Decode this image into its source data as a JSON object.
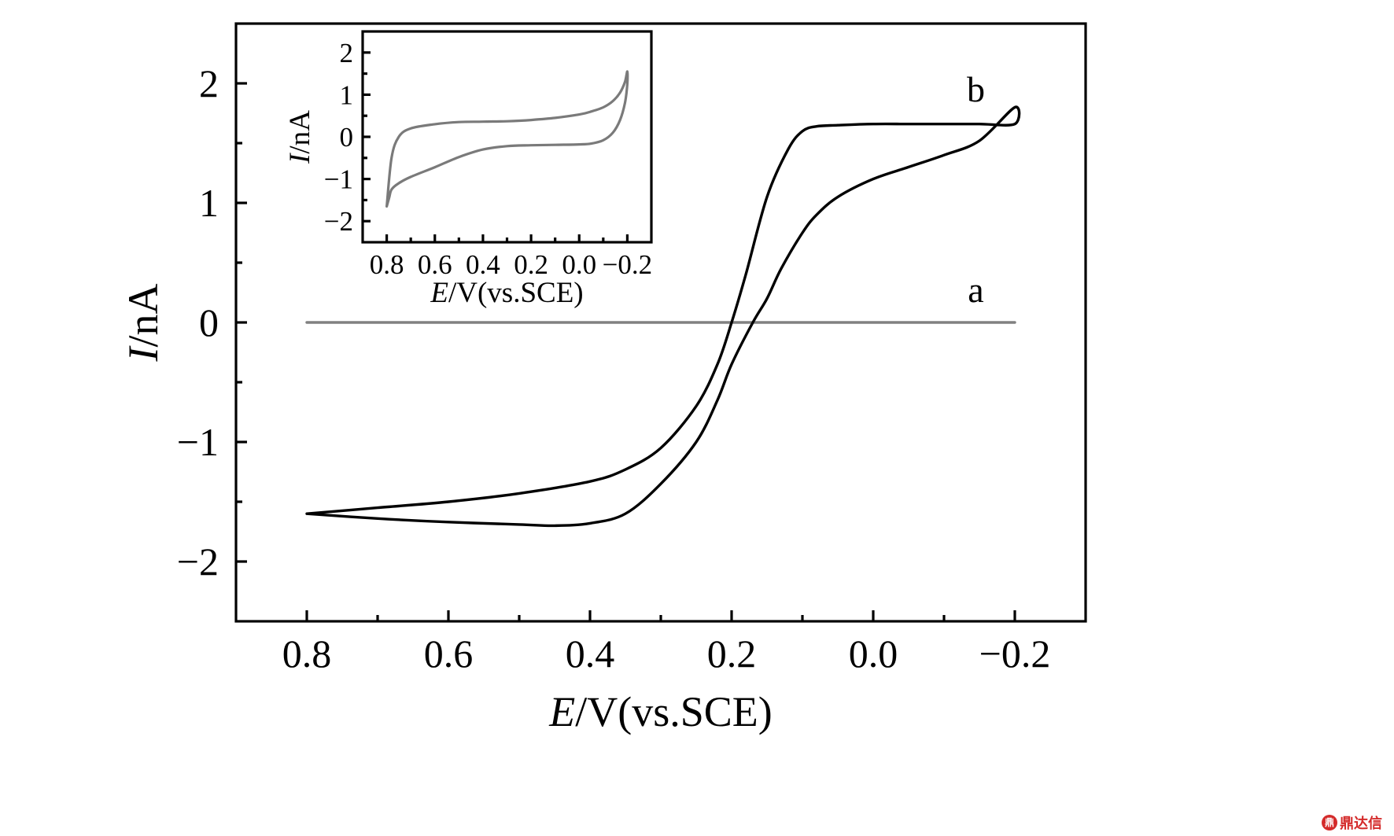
{
  "chart_data": [
    {
      "type": "line",
      "name_role": "main",
      "xlabel_italic": "E",
      "xlabel_rest": "/V(vs.SCE)",
      "ylabel_italic": "I",
      "ylabel_rest": "/nA",
      "xlim": [
        0.9,
        -0.3
      ],
      "ylim": [
        -2.5,
        2.5
      ],
      "x_reversed": true,
      "x_ticks": [
        0.8,
        0.6,
        0.4,
        0.2,
        0.0,
        -0.2
      ],
      "x_tick_labels": [
        "0.8",
        "0.6",
        "0.4",
        "0.2",
        "0.0",
        "−0.2"
      ],
      "x_minor_ticks": [
        0.7,
        0.5,
        0.3,
        0.1,
        -0.1
      ],
      "y_ticks": [
        2,
        1,
        0,
        -1,
        -2
      ],
      "y_tick_labels": [
        "2",
        "1",
        "0",
        "−1",
        "−2"
      ],
      "y_minor_ticks": [
        1.5,
        0.5,
        -0.5,
        -1.5
      ],
      "grid": false,
      "series": [
        {
          "name": "a",
          "color": "#808080",
          "x": [
            0.8,
            -0.2
          ],
          "y": [
            0.0,
            0.0
          ]
        },
        {
          "name": "b",
          "color": "#000000",
          "x": [
            0.8,
            0.7,
            0.6,
            0.5,
            0.4,
            0.35,
            0.3,
            0.25,
            0.22,
            0.2,
            0.18,
            0.15,
            0.12,
            0.1,
            0.08,
            0.05,
            0.0,
            -0.05,
            -0.1,
            -0.15,
            -0.2,
            -0.2,
            -0.15,
            -0.1,
            -0.05,
            0.0,
            0.05,
            0.08,
            0.1,
            0.13,
            0.15,
            0.17,
            0.2,
            0.22,
            0.25,
            0.3,
            0.35,
            0.4,
            0.45,
            0.5,
            0.6,
            0.7,
            0.8
          ],
          "y": [
            -1.6,
            -1.55,
            -1.5,
            -1.43,
            -1.33,
            -1.23,
            -1.05,
            -0.7,
            -0.35,
            0.0,
            0.4,
            1.05,
            1.45,
            1.6,
            1.64,
            1.65,
            1.66,
            1.66,
            1.66,
            1.66,
            1.66,
            1.8,
            1.52,
            1.4,
            1.3,
            1.2,
            1.05,
            0.9,
            0.75,
            0.45,
            0.2,
            0.0,
            -0.35,
            -0.65,
            -1.0,
            -1.35,
            -1.6,
            -1.68,
            -1.7,
            -1.69,
            -1.67,
            -1.64,
            -1.6
          ]
        }
      ],
      "annotations": [
        {
          "text": "a",
          "x": -0.145,
          "y": 0.17
        },
        {
          "text": "b",
          "x": -0.145,
          "y": 1.85
        }
      ]
    },
    {
      "type": "line",
      "name_role": "inset",
      "xlabel_italic": "E",
      "xlabel_rest": "/V(vs.SCE)",
      "ylabel_italic": "I",
      "ylabel_rest": "/nA",
      "xlim": [
        0.9,
        -0.3
      ],
      "ylim": [
        -2.5,
        2.5
      ],
      "x_reversed": true,
      "x_ticks": [
        0.8,
        0.6,
        0.4,
        0.2,
        0.0,
        -0.2
      ],
      "x_tick_labels": [
        "0.8",
        "0.6",
        "0.4",
        "0.2",
        "0.0",
        "−0.2"
      ],
      "x_minor_ticks": [
        0.7,
        0.5,
        0.3,
        0.1,
        -0.1
      ],
      "y_ticks": [
        2,
        1,
        0,
        -1,
        -2
      ],
      "y_tick_labels": [
        "2",
        "1",
        "0",
        "−1",
        "−2"
      ],
      "y_minor_ticks": [
        1.5,
        0.5,
        -0.5,
        -1.5
      ],
      "grid": false,
      "series": [
        {
          "name": "",
          "color": "#7a7a7a",
          "x": [
            0.8,
            0.79,
            0.78,
            0.75,
            0.7,
            0.6,
            0.5,
            0.4,
            0.3,
            0.2,
            0.1,
            0.0,
            -0.05,
            -0.1,
            -0.14,
            -0.17,
            -0.19,
            -0.2,
            -0.2,
            -0.19,
            -0.17,
            -0.14,
            -0.1,
            -0.05,
            0.0,
            0.1,
            0.2,
            0.3,
            0.4,
            0.5,
            0.6,
            0.7,
            0.75,
            0.78,
            0.8
          ],
          "y": [
            -1.65,
            -1.45,
            -1.25,
            -1.1,
            -0.95,
            -0.72,
            -0.48,
            -0.3,
            -0.22,
            -0.2,
            -0.19,
            -0.18,
            -0.16,
            -0.08,
            0.1,
            0.4,
            0.8,
            1.25,
            1.55,
            1.3,
            1.05,
            0.85,
            0.7,
            0.6,
            0.53,
            0.45,
            0.4,
            0.37,
            0.36,
            0.35,
            0.3,
            0.2,
            0.0,
            -0.5,
            -1.65
          ]
        }
      ]
    }
  ],
  "watermark": {
    "icon_text": "鼎",
    "text": "鼎达信"
  }
}
